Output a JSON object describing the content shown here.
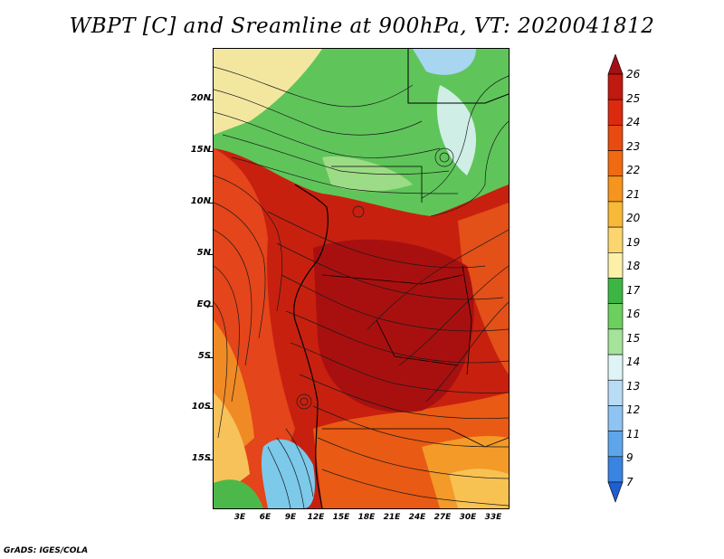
{
  "title": "WBPT [C] and Sreamline at 900hPa, VT: 2020041812",
  "credit": "GrADS: IGES/COLA",
  "map": {
    "variable": "Wet-bulb potential temperature",
    "units": "C",
    "level": "900hPa",
    "overlay": "streamlines",
    "lat_ticks": [
      "20N",
      "15N",
      "10N",
      "5N",
      "EQ",
      "5S",
      "10S",
      "15S"
    ],
    "lon_ticks": [
      "3E",
      "6E",
      "9E",
      "12E",
      "15E",
      "18E",
      "21E",
      "24E",
      "27E",
      "30E",
      "33E"
    ]
  },
  "colorbar": {
    "labels": [
      "26",
      "25",
      "24",
      "23",
      "22",
      "21",
      "20",
      "19",
      "18",
      "17",
      "16",
      "15",
      "14",
      "13",
      "12",
      "11",
      "9",
      "7"
    ],
    "colors": [
      "#a50f15",
      "#c0190f",
      "#dc2a0f",
      "#e84a10",
      "#f06a12",
      "#f6951d",
      "#f8b938",
      "#fbd66e",
      "#fdf0a8",
      "#3cb643",
      "#6ccf5e",
      "#a6e39a",
      "#dff4f4",
      "#b9dcf6",
      "#8fc3f1",
      "#5ea6ea",
      "#3984e0",
      "#1e5fd1"
    ]
  }
}
